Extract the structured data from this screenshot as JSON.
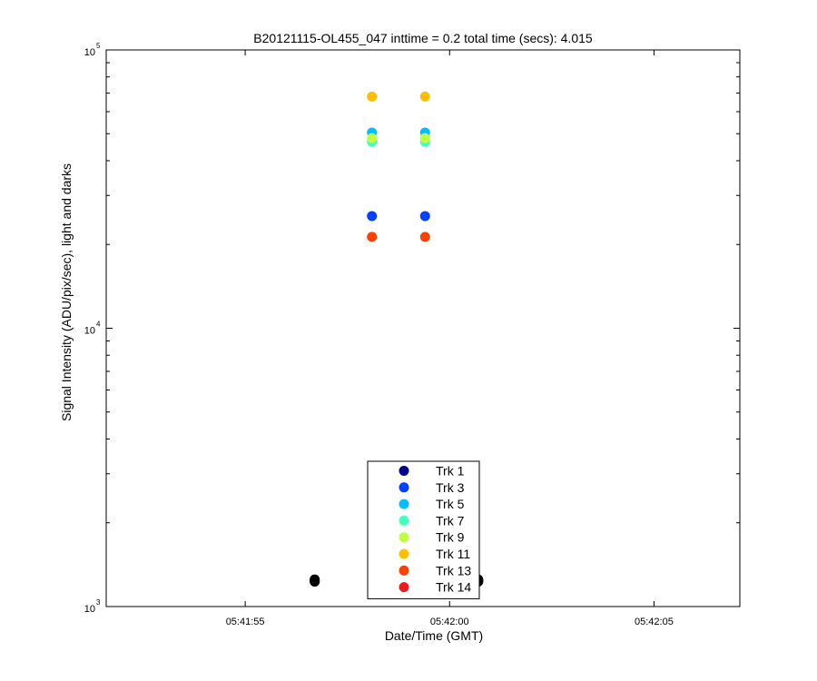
{
  "chart_data": {
    "type": "scatter",
    "title": "B20121115-OL455_047 inttime = 0.2 total time (secs): 4.015",
    "xlabel": "Date/Time (GMT)",
    "ylabel": "Signal Intensity (ADU/pix/sec), light and darks",
    "x_scale": "time",
    "y_scale": "log",
    "xlim": [
      "05:41:51.6",
      "05:42:07.1"
    ],
    "ylim": [
      1000,
      100000
    ],
    "x_ticks": [
      "05:41:55",
      "05:42:00",
      "05:42:05"
    ],
    "y_ticks": [
      {
        "base": "10",
        "exp": "3",
        "value": 1000
      },
      {
        "base": "10",
        "exp": "4",
        "value": 10000
      },
      {
        "base": "10",
        "exp": "5",
        "value": 100000
      }
    ],
    "grid": false,
    "legend_position": "bottom-center",
    "series": [
      {
        "name": "Trk 1",
        "color": "#00008f",
        "points": [
          [
            "05:41:56.7",
            1230
          ],
          [
            "05:41:56.7",
            1250
          ],
          [
            "05:42:00.7",
            1230
          ],
          [
            "05:42:00.7",
            1250
          ]
        ]
      },
      {
        "name": "Trk 3",
        "color": "#0040ff",
        "points": [
          [
            "05:41:58.1",
            25300
          ],
          [
            "05:41:59.4",
            25300
          ]
        ]
      },
      {
        "name": "Trk 5",
        "color": "#00bfff",
        "points": [
          [
            "05:41:58.1",
            50500
          ],
          [
            "05:41:59.4",
            50500
          ]
        ]
      },
      {
        "name": "Trk 7",
        "color": "#40ffbf",
        "points": [
          [
            "05:41:58.1",
            46800
          ],
          [
            "05:41:59.4",
            46800
          ]
        ]
      },
      {
        "name": "Trk 9",
        "color": "#bfff40",
        "points": [
          [
            "05:41:58.1",
            48200
          ],
          [
            "05:41:59.4",
            48200
          ]
        ]
      },
      {
        "name": "Trk 11",
        "color": "#ffbf00",
        "points": [
          [
            "05:41:58.1",
            68000
          ],
          [
            "05:41:59.4",
            68000
          ]
        ]
      },
      {
        "name": "Trk 13",
        "color": "#ff4000",
        "points": [
          [
            "05:41:58.1",
            21300
          ],
          [
            "05:41:59.4",
            21300
          ]
        ]
      },
      {
        "name": "Trk 14",
        "color": "#ef1b1b",
        "points": []
      }
    ],
    "dark_points_color": "#000000",
    "dark_points": [
      [
        "05:41:56.7",
        1230
      ],
      [
        "05:41:56.7",
        1250
      ],
      [
        "05:42:00.7",
        1230
      ],
      [
        "05:42:00.7",
        1250
      ]
    ]
  }
}
